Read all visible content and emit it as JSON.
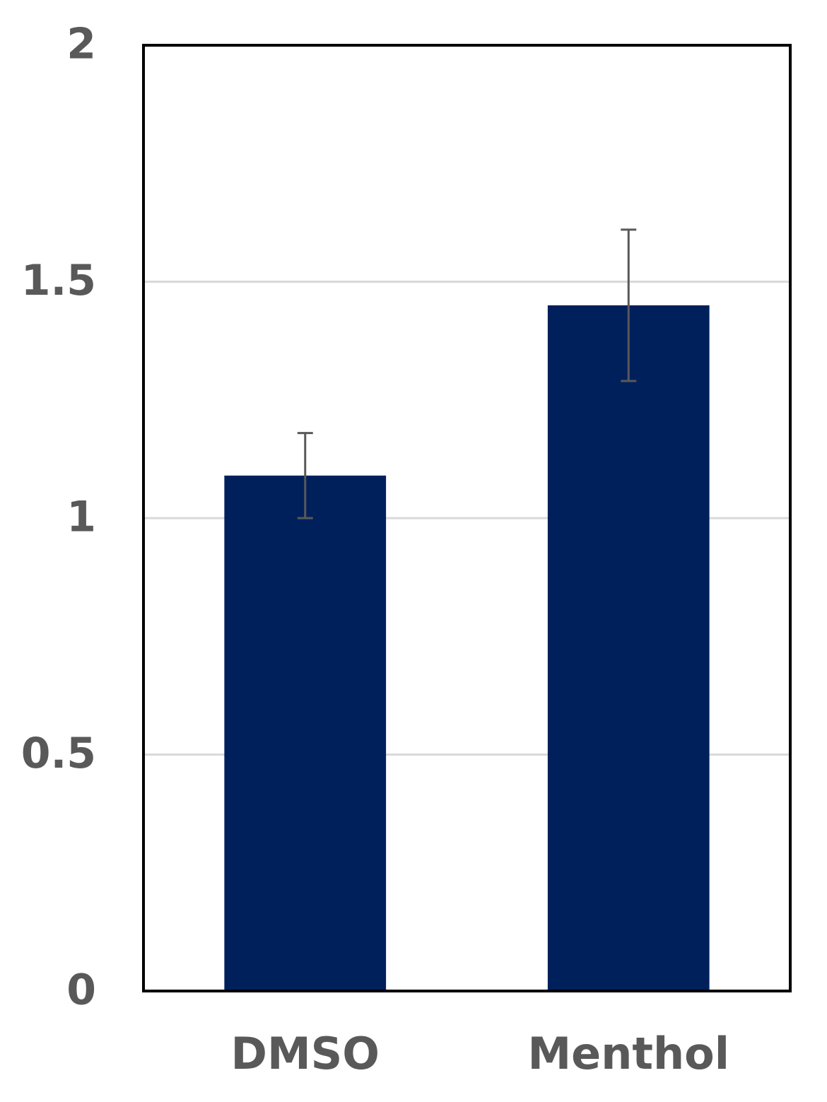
{
  "chart_data": {
    "type": "bar",
    "categories": [
      "DMSO",
      "Menthol"
    ],
    "values": [
      1.09,
      1.45
    ],
    "errors": [
      0.09,
      0.16
    ],
    "color": "#00205b",
    "error_color": "#595959",
    "ylim": [
      0,
      2
    ],
    "yticks": [
      0,
      0.5,
      1,
      1.5,
      2
    ],
    "grid": true
  }
}
